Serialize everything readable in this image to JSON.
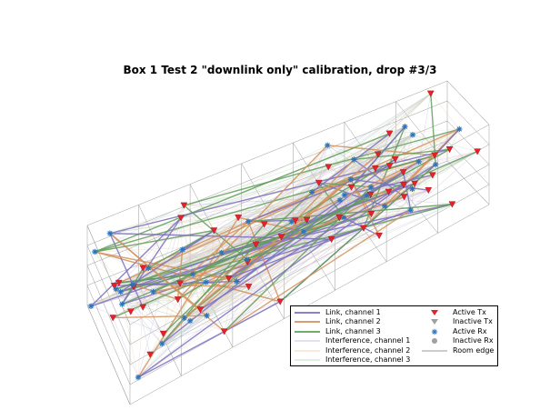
{
  "chart_data": {
    "type": "scatter",
    "title": "Box 1 Test 2 \"downlink only\" calibration, drop #3/3",
    "xlabel": "",
    "ylabel": "",
    "zlabel": "",
    "projection": "3d",
    "grid": false,
    "legend_position": "bottom-right",
    "series": [
      {
        "name": "Link, channel 1",
        "kind": "line",
        "color": "#7b6fc0"
      },
      {
        "name": "Link, channel 2",
        "kind": "line",
        "color": "#d3915c"
      },
      {
        "name": "Link, channel 3",
        "kind": "line",
        "color": "#5f9e5a"
      },
      {
        "name": "Interference, channel 1",
        "kind": "line",
        "color": "#c6c1e4"
      },
      {
        "name": "Interference, channel 2",
        "kind": "line",
        "color": "#f0d3bb"
      },
      {
        "name": "Interference, channel 3",
        "kind": "line",
        "color": "#c4dcc1"
      },
      {
        "name": "Active Tx",
        "kind": "marker",
        "marker": "triangle-down",
        "color": "#e8202a"
      },
      {
        "name": "Inactive Tx",
        "kind": "marker",
        "marker": "triangle-down",
        "color": "#a0a0a0"
      },
      {
        "name": "Active Rx",
        "kind": "marker",
        "marker": "asterisk",
        "color": "#2a73b8"
      },
      {
        "name": "Inactive Rx",
        "kind": "marker",
        "marker": "circle",
        "color": "#a0a0a0"
      },
      {
        "name": "Room edge",
        "kind": "line",
        "color": "#999999"
      }
    ]
  }
}
